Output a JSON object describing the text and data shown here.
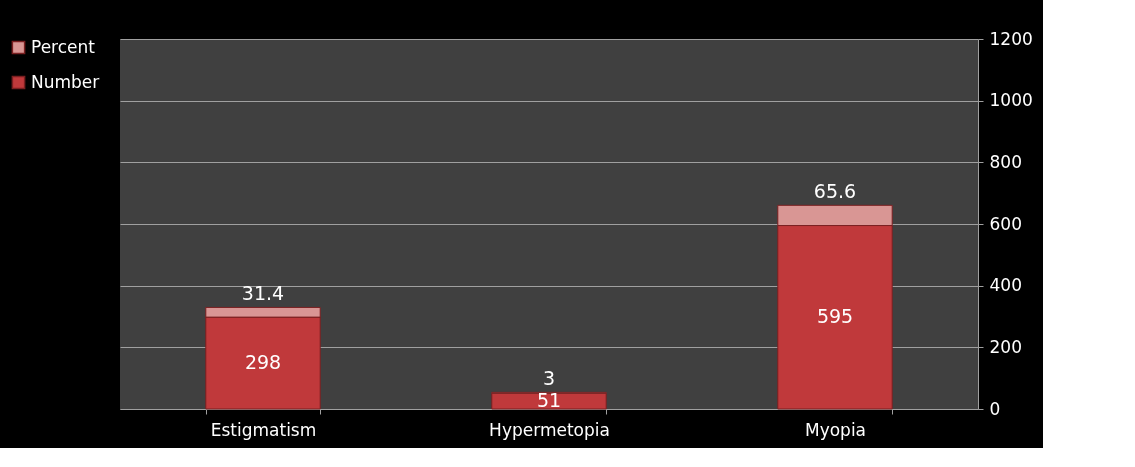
{
  "chart_data": {
    "type": "bar",
    "stacked": true,
    "categories": [
      "Estigmatism",
      "Hypermetopia",
      "Myopia"
    ],
    "series": [
      {
        "name": "Number",
        "color": "#c0393b",
        "values": [
          298,
          51,
          595
        ]
      },
      {
        "name": "Percent",
        "color": "#d99694",
        "values": [
          31.4,
          3,
          65.6
        ]
      }
    ],
    "ylim": [
      0,
      1200
    ],
    "yticks": [
      0,
      200,
      400,
      600,
      800,
      1000,
      1200
    ],
    "grid": "y",
    "legend": "left",
    "data_labels": true
  }
}
